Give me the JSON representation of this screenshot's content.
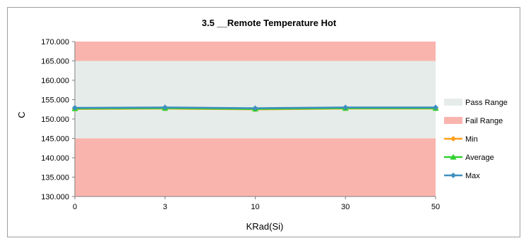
{
  "chart_data": {
    "type": "line",
    "title": "3.5 __Remote Temperature Hot",
    "xlabel": "KRad(Si)",
    "ylabel": "C",
    "categories": [
      "0",
      "3",
      "10",
      "30",
      "50"
    ],
    "ylim": [
      130,
      170
    ],
    "yticks": [
      "130.000",
      "135.000",
      "140.000",
      "145.000",
      "150.000",
      "155.000",
      "160.000",
      "165.000",
      "170.000"
    ],
    "bands": [
      {
        "name": "Pass Range",
        "from": 145,
        "to": 165,
        "color": "#e6ecea"
      },
      {
        "name": "Fail Range",
        "from": 130,
        "to": 145,
        "color": "#fab4ae"
      },
      {
        "name": "Fail Range",
        "from": 165,
        "to": 170,
        "color": "#fab4ae"
      }
    ],
    "series": [
      {
        "name": "Min",
        "values": [
          152.6,
          152.7,
          152.5,
          152.7,
          152.7
        ],
        "color": "#ff9e1b",
        "marker": "diamond"
      },
      {
        "name": "Average",
        "values": [
          152.7,
          152.8,
          152.6,
          152.8,
          152.8
        ],
        "color": "#2ed12e",
        "marker": "triangle"
      },
      {
        "name": "Max",
        "values": [
          152.9,
          153.0,
          152.8,
          153.0,
          153.0
        ],
        "color": "#3f8fbf",
        "marker": "diamond"
      }
    ],
    "legend": {
      "position": "right",
      "items": [
        {
          "label": "Pass Range",
          "kind": "band",
          "color": "#e6ecea"
        },
        {
          "label": "Fail Range",
          "kind": "band",
          "color": "#fab4ae"
        },
        {
          "label": "Min",
          "kind": "line",
          "color": "#ff9e1b",
          "marker": "diamond"
        },
        {
          "label": "Average",
          "kind": "line",
          "color": "#2ed12e",
          "marker": "triangle"
        },
        {
          "label": "Max",
          "kind": "line",
          "color": "#3f8fbf",
          "marker": "diamond"
        }
      ]
    },
    "grid": false
  }
}
